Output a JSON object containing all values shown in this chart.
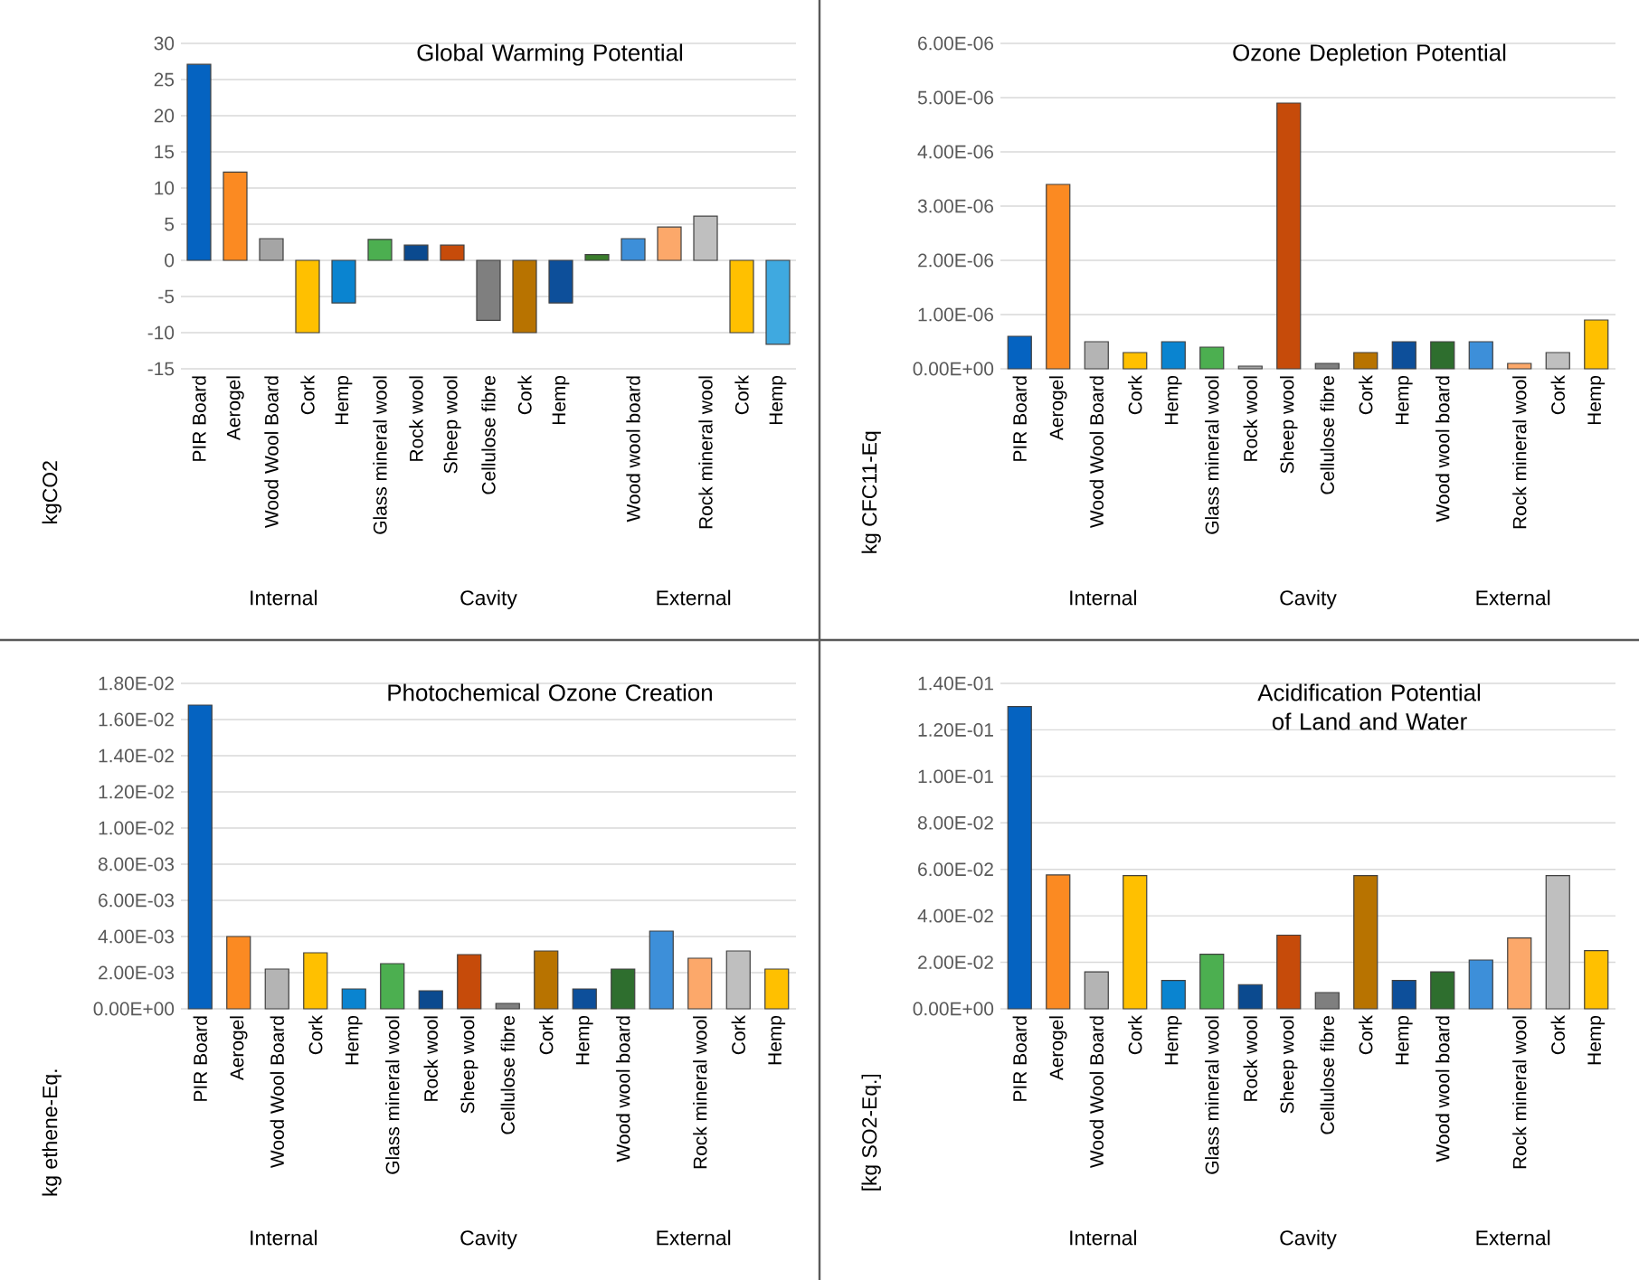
{
  "chart_data": [
    {
      "type": "bar",
      "title": "Global Warming Potential",
      "ylabel": "kgCO2",
      "categories": [
        "PIR Board",
        "Aerogel",
        "Wood Wool Board",
        "Cork",
        "Hemp",
        "Glass mineral wool",
        "Rock wool",
        "Sheep wool",
        "Cellulose fibre",
        "Cork",
        "Hemp",
        null,
        "Wood wool board",
        null,
        "Rock mineral wool",
        "Cork",
        "Hemp"
      ],
      "values": [
        27.1,
        12.2,
        3.0,
        -10.0,
        -5.9,
        2.9,
        2.1,
        2.1,
        -8.3,
        -10.0,
        -5.9,
        0.8,
        3.0,
        4.6,
        6.1,
        -10.0,
        -11.6
      ],
      "colors": [
        "#0563c1",
        "#fb8a22",
        "#a5a5a5",
        "#ffc000",
        "#0a84d0",
        "#4caf50",
        "#0b4a8f",
        "#c64b0a",
        "#7f7f7f",
        "#b87300",
        "#0d4f9a",
        "#3a7d2c",
        "#3d8fd9",
        "#fca86a",
        "#bfbfbf",
        "#ffc000",
        "#3fa9e0"
      ],
      "ylim": [
        -15,
        30
      ],
      "yticks": [
        -15,
        -10,
        -5,
        0,
        5,
        10,
        15,
        20,
        25,
        30
      ],
      "grid": "y",
      "annotations": [
        "Internal",
        "Cavity",
        "External"
      ]
    },
    {
      "type": "bar",
      "title": "Ozone Depletion Potential",
      "ylabel": "kg CFC11-Eq",
      "categories": [
        "PIR Board",
        "Aerogel",
        "Wood Wool Board",
        "Cork",
        "Hemp",
        "Glass mineral wool",
        "Rock wool",
        "Sheep wool",
        "Cellulose fibre",
        "Cork",
        "Hemp",
        "Wood wool board",
        null,
        "Rock mineral wool",
        "Cork",
        "Hemp"
      ],
      "values": [
        6e-07,
        3.4e-06,
        5e-07,
        3e-07,
        5e-07,
        4e-07,
        5e-08,
        4.9e-06,
        1e-07,
        3e-07,
        5e-07,
        5e-07,
        5e-07,
        1e-07,
        3e-07,
        9e-07
      ],
      "colors": [
        "#0563c1",
        "#fb8a22",
        "#b4b4b4",
        "#ffc000",
        "#0a84d0",
        "#4caf50",
        "#a5a5a5",
        "#c64b0a",
        "#7f7f7f",
        "#b87300",
        "#0d4f9a",
        "#2e6e2e",
        "#3d8fd9",
        "#fca86a",
        "#bfbfbf",
        "#ffc000"
      ],
      "ylim": [
        0,
        6e-06
      ],
      "yticks": [
        {
          "value": 0,
          "label": "0.00E+00"
        },
        {
          "value": 1e-06,
          "label": "1.00E-06"
        },
        {
          "value": 2e-06,
          "label": "2.00E-06"
        },
        {
          "value": 3e-06,
          "label": "3.00E-06"
        },
        {
          "value": 4e-06,
          "label": "4.00E-06"
        },
        {
          "value": 5e-06,
          "label": "5.00E-06"
        },
        {
          "value": 6e-06,
          "label": "6.00E-06"
        }
      ],
      "grid": "y",
      "annotations": [
        "Internal",
        "Cavity",
        "External"
      ]
    },
    {
      "type": "bar",
      "title": "Photochemical Ozone Creation",
      "ylabel": "kg ethene-Eq.",
      "categories": [
        "PIR Board",
        "Aerogel",
        "Wood Wool Board",
        "Cork",
        "Hemp",
        "Glass mineral wool",
        "Rock wool",
        "Sheep wool",
        "Cellulose fibre",
        "Cork",
        "Hemp",
        "Wood wool board",
        null,
        "Rock mineral wool",
        "Cork",
        "Hemp"
      ],
      "values": [
        0.0168,
        0.004,
        0.0022,
        0.0031,
        0.0011,
        0.0025,
        0.001,
        0.003,
        0.0003,
        0.0032,
        0.0011,
        0.0022,
        0.0043,
        0.0028,
        0.0032,
        0.0022
      ],
      "colors": [
        "#0563c1",
        "#fb8a22",
        "#b4b4b4",
        "#ffc000",
        "#0a84d0",
        "#4caf50",
        "#0b4a8f",
        "#c64b0a",
        "#7f7f7f",
        "#b87300",
        "#0d4f9a",
        "#2e6e2e",
        "#3d8fd9",
        "#fca86a",
        "#bfbfbf",
        "#ffc000"
      ],
      "ylim": [
        0,
        0.018
      ],
      "yticks": [
        {
          "value": 0,
          "label": "0.00E+00"
        },
        {
          "value": 0.002,
          "label": "2.00E-03"
        },
        {
          "value": 0.004,
          "label": "4.00E-03"
        },
        {
          "value": 0.006,
          "label": "6.00E-03"
        },
        {
          "value": 0.008,
          "label": "8.00E-03"
        },
        {
          "value": 0.01,
          "label": "1.00E-02"
        },
        {
          "value": 0.012,
          "label": "1.20E-02"
        },
        {
          "value": 0.014,
          "label": "1.40E-02"
        },
        {
          "value": 0.016,
          "label": "1.60E-02"
        },
        {
          "value": 0.018,
          "label": "1.80E-02"
        }
      ],
      "grid": "y",
      "annotations": [
        "Internal",
        "Cavity",
        "External"
      ]
    },
    {
      "type": "bar",
      "title": "Acidification Potential of Land and Water",
      "ylabel": "[kg SO2-Eq.]",
      "categories": [
        "PIR Board",
        "Aerogel",
        "Wood Wool Board",
        "Cork",
        "Hemp",
        "Glass mineral wool",
        "Rock wool",
        "Sheep wool",
        "Cellulose fibre",
        "Cork",
        "Hemp",
        "Wood wool board",
        null,
        "Rock mineral wool",
        "Cork",
        "Hemp"
      ],
      "values": [
        0.13,
        0.0576,
        0.0159,
        0.0573,
        0.0122,
        0.0235,
        0.0104,
        0.0317,
        0.007,
        0.0573,
        0.0122,
        0.0159,
        0.021,
        0.0305,
        0.0573,
        0.025
      ],
      "colors": [
        "#0563c1",
        "#fb8a22",
        "#b4b4b4",
        "#ffc000",
        "#0a84d0",
        "#4caf50",
        "#0b4a8f",
        "#c64b0a",
        "#7f7f7f",
        "#b87300",
        "#0d4f9a",
        "#2e6e2e",
        "#3d8fd9",
        "#fca86a",
        "#bfbfbf",
        "#ffc000"
      ],
      "ylim": [
        0,
        0.14
      ],
      "yticks": [
        {
          "value": 0,
          "label": "0.00E+00"
        },
        {
          "value": 0.02,
          "label": "2.00E-02"
        },
        {
          "value": 0.04,
          "label": "4.00E-02"
        },
        {
          "value": 0.06,
          "label": "6.00E-02"
        },
        {
          "value": 0.08,
          "label": "8.00E-02"
        },
        {
          "value": 0.1,
          "label": "1.00E-01"
        },
        {
          "value": 0.12,
          "label": "1.20E-01"
        },
        {
          "value": 0.14,
          "label": "1.40E-01"
        }
      ],
      "grid": "y",
      "annotations": [
        "Internal",
        "Cavity",
        "External"
      ]
    }
  ]
}
